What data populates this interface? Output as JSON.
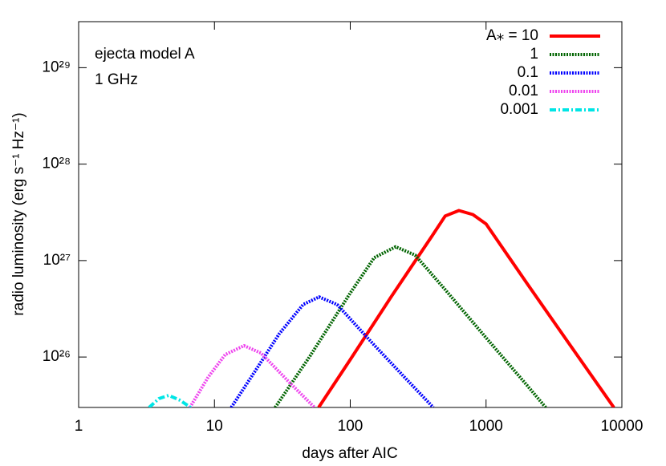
{
  "chart_data": {
    "type": "line",
    "xlabel": "days after AIC",
    "ylabel": "radio luminosity (erg s⁻¹ Hz⁻¹)",
    "annotations": [
      "ejecta model A",
      "1 GHz"
    ],
    "xlog": true,
    "ylog": true,
    "xlim": [
      1,
      10000
    ],
    "xticks": [
      1,
      10,
      100,
      1000,
      10000
    ],
    "ylim": [
      3e+25,
      3e+29
    ],
    "yticks": [
      {
        "value": 1e+26,
        "label": "10²⁶"
      },
      {
        "value": 1e+27,
        "label": "10²⁷"
      },
      {
        "value": 1e+28,
        "label": "10²⁸"
      },
      {
        "value": 1e+29,
        "label": "10²⁹"
      }
    ],
    "legend": "top-right",
    "series": [
      {
        "name": "A⁎ = 10",
        "color": "#ff0000",
        "line_style": "solid",
        "x": [
          58.5,
          100,
          200,
          400,
          500,
          631,
          800,
          1000,
          2000,
          4000,
          8730
        ],
        "values": [
          3e+25,
          9.4e+25,
          4.2e+26,
          1.8e+27,
          2.9e+27,
          3.3e+27,
          3e+27,
          2.4e+27,
          5.8e+26,
          1.44e+26,
          3e+25
        ]
      },
      {
        "name": "1",
        "color": "#006400",
        "line_style": "dotted",
        "x": [
          28,
          50,
          100,
          150,
          216,
          300,
          500,
          1000,
          2000,
          2750
        ],
        "values": [
          3e+25,
          1e+26,
          4.6e+26,
          1.07e+27,
          1.39e+27,
          1.14e+27,
          5e+26,
          1.58e+26,
          5.1e+25,
          3e+25
        ]
      },
      {
        "name": "0.1",
        "color": "#0000ff",
        "line_style": "dotted",
        "x": [
          13.3,
          20,
          30,
          45,
          59,
          80,
          150,
          250,
          409
        ],
        "values": [
          3e+25,
          7.2e+25,
          1.74e+26,
          3.5e+26,
          4.2e+26,
          3.5e+26,
          1.33e+26,
          6.2e+25,
          3e+25
        ]
      },
      {
        "name": "0.01",
        "color": "#ee44ee",
        "line_style": "dotted",
        "x": [
          6.6,
          9,
          12,
          16.5,
          22,
          35,
          54.6
        ],
        "values": [
          3e+25,
          6.2e+25,
          1.06e+26,
          1.31e+26,
          1.1e+26,
          5.6e+25,
          3e+25
        ]
      },
      {
        "name": "0.001",
        "color": "#00e5e5",
        "line_style": "dashdot",
        "x": [
          3.3,
          3.9,
          4.6,
          5.5,
          6.7
        ],
        "values": [
          3e+25,
          3.7e+25,
          4e+25,
          3.6e+25,
          3e+25
        ]
      }
    ]
  }
}
